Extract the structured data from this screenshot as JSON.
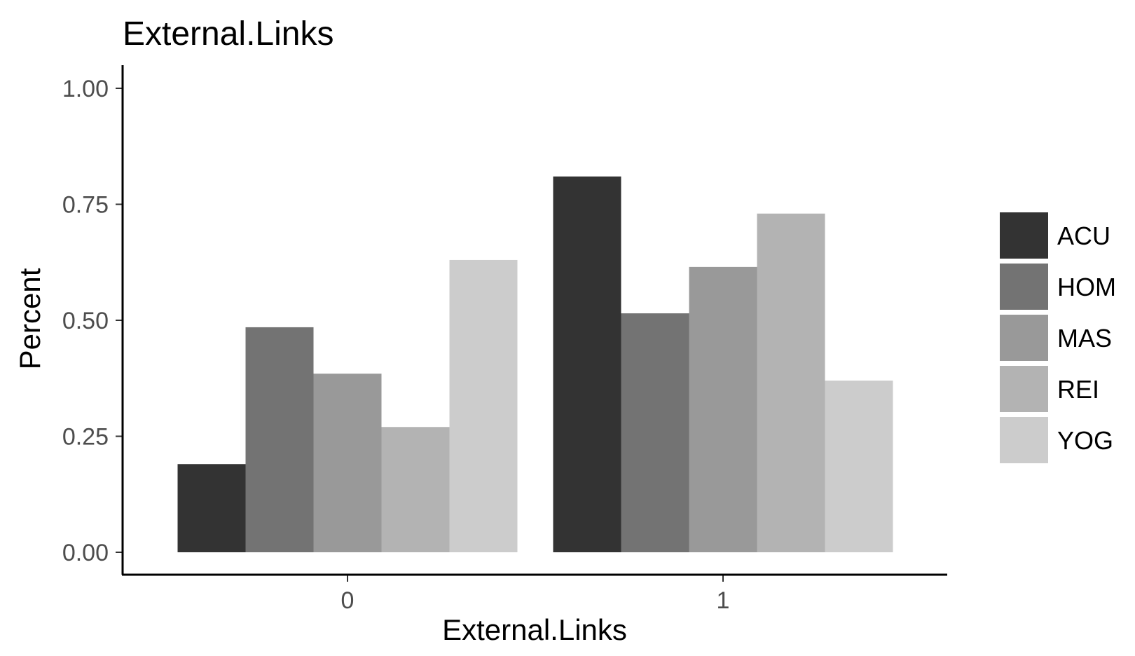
{
  "chart_data": {
    "type": "bar",
    "title": "External.Links",
    "xlabel": "External.Links",
    "ylabel": "Percent",
    "categories": [
      "0",
      "1"
    ],
    "series": [
      {
        "name": "ACU",
        "values": [
          0.19,
          0.81
        ],
        "color": "#333333"
      },
      {
        "name": "HOM",
        "values": [
          0.485,
          0.515
        ],
        "color": "#737373"
      },
      {
        "name": "MAS",
        "values": [
          0.385,
          0.615
        ],
        "color": "#999999"
      },
      {
        "name": "REI",
        "values": [
          0.27,
          0.73
        ],
        "color": "#b3b3b3"
      },
      {
        "name": "YOG",
        "values": [
          0.63,
          0.37
        ],
        "color": "#cccccc"
      }
    ],
    "ylim": [
      0,
      1
    ],
    "yticks": [
      "0.00",
      "0.25",
      "0.50",
      "0.75",
      "1.00"
    ],
    "grid": false,
    "legend_position": "right"
  }
}
